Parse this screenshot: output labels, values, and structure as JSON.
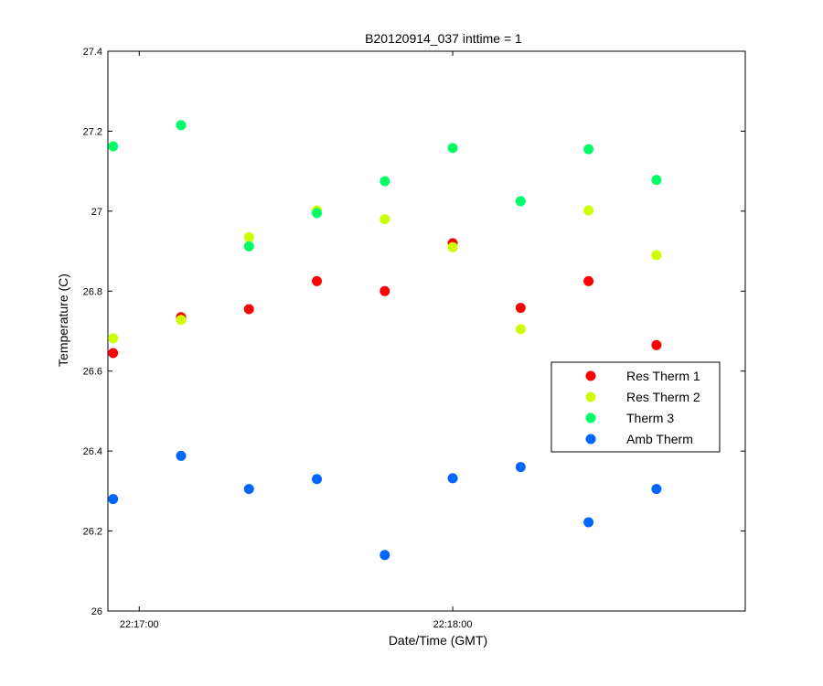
{
  "chart_data": {
    "type": "scatter",
    "title": "B20120914_037 inttime = 1",
    "xlabel": "Date/Time (GMT)",
    "ylabel": "Temperature (C)",
    "ylim": [
      26,
      27.4
    ],
    "yticks": [
      26,
      26.2,
      26.4,
      26.6,
      26.8,
      27,
      27.2,
      27.4
    ],
    "ytick_labels": [
      "26",
      "26.2",
      "26.4",
      "26.6",
      "26.8",
      "27",
      "27.2",
      "27.4"
    ],
    "xlim_seconds": [
      0,
      122
    ],
    "xticks": [
      {
        "seconds": 6,
        "label": "22:17:00"
      },
      {
        "seconds": 66,
        "label": "22:18:00"
      }
    ],
    "x_seconds": [
      1,
      14,
      27,
      40,
      53,
      66,
      79,
      92,
      105
    ],
    "series": [
      {
        "name": "Res Therm 1",
        "color": "#ff0000",
        "values": [
          26.645,
          26.735,
          26.755,
          26.825,
          26.8,
          26.92,
          26.758,
          26.825,
          26.665
        ]
      },
      {
        "name": "Res Therm 2",
        "color": "#ccff00",
        "values": [
          26.682,
          26.728,
          26.935,
          27.002,
          26.98,
          26.91,
          26.705,
          27.002,
          26.89
        ]
      },
      {
        "name": "Therm 3",
        "color": "#00ff66",
        "values": [
          27.162,
          27.215,
          26.912,
          26.995,
          27.075,
          27.158,
          27.025,
          27.155,
          27.078
        ]
      },
      {
        "name": "Amb Therm",
        "color": "#0066ff",
        "values": [
          26.28,
          26.388,
          26.305,
          26.33,
          26.14,
          26.332,
          26.36,
          26.222,
          26.305
        ]
      }
    ],
    "legend_position": "right"
  }
}
